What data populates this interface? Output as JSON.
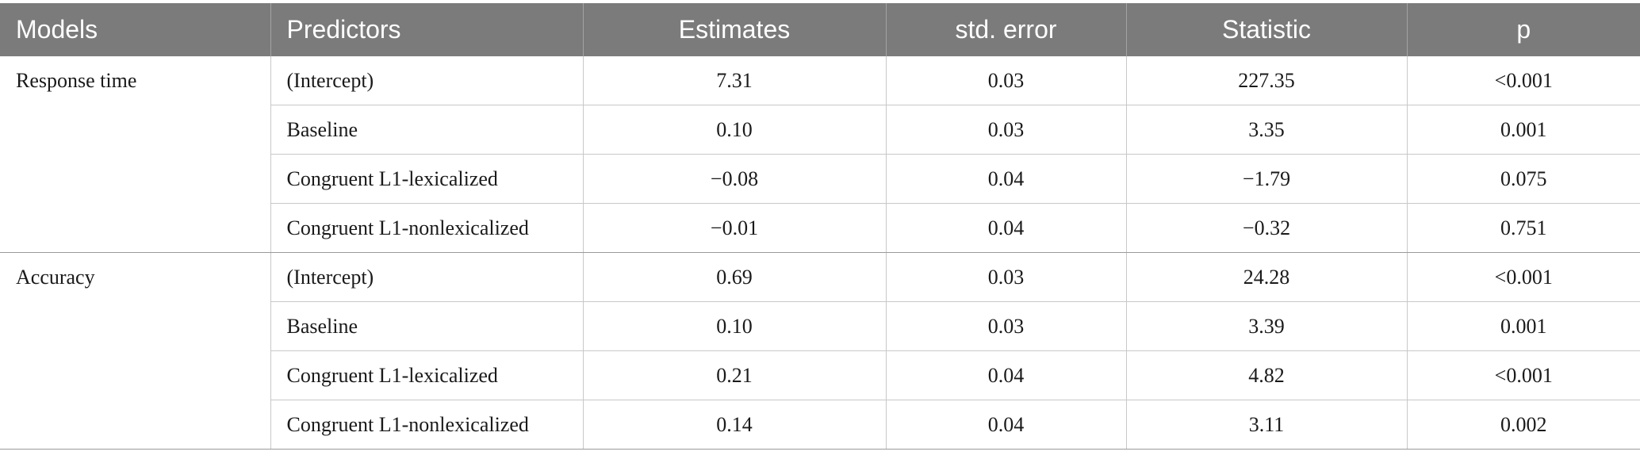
{
  "table": {
    "headers": [
      "Models",
      "Predictors",
      "Estimates",
      "std. error",
      "Statistic",
      "p"
    ],
    "groups": [
      {
        "model": "Response time",
        "rows": [
          {
            "predictor": "(Intercept)",
            "estimate": "7.31",
            "se": "0.03",
            "statistic": "227.35",
            "p": "<0.001"
          },
          {
            "predictor": "Baseline",
            "estimate": "0.10",
            "se": "0.03",
            "statistic": "3.35",
            "p": "0.001"
          },
          {
            "predictor": "Congruent L1-lexicalized",
            "estimate": "−0.08",
            "se": "0.04",
            "statistic": "−1.79",
            "p": "0.075"
          },
          {
            "predictor": "Congruent L1-nonlexicalized",
            "estimate": "−0.01",
            "se": "0.04",
            "statistic": "−0.32",
            "p": "0.751"
          }
        ]
      },
      {
        "model": "Accuracy",
        "rows": [
          {
            "predictor": "(Intercept)",
            "estimate": "0.69",
            "se": "0.03",
            "statistic": "24.28",
            "p": "<0.001"
          },
          {
            "predictor": "Baseline",
            "estimate": "0.10",
            "se": "0.03",
            "statistic": "3.39",
            "p": "0.001"
          },
          {
            "predictor": "Congruent L1-lexicalized",
            "estimate": "0.21",
            "se": "0.04",
            "statistic": "4.82",
            "p": "<0.001"
          },
          {
            "predictor": "Congruent L1-nonlexicalized",
            "estimate": "0.14",
            "se": "0.04",
            "statistic": "3.11",
            "p": "0.002"
          }
        ]
      }
    ]
  },
  "colors": {
    "header_bg": "#7a7b7a",
    "header_text": "#ffffff",
    "grid_line": "#c8c8c8"
  }
}
